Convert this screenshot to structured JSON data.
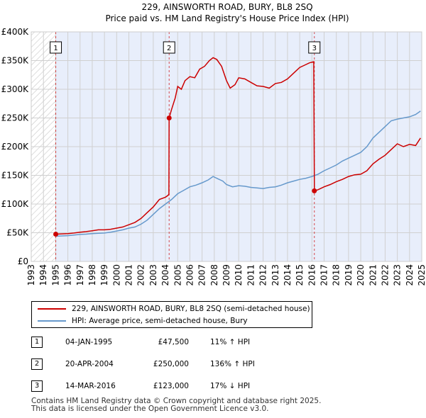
{
  "title": "229, AINSWORTH ROAD, BURY, BL8 2SQ",
  "subtitle": "Price paid vs. HM Land Registry's House Price Index (HPI)",
  "chart_data": {
    "type": "line",
    "title": "229, AINSWORTH ROAD, BURY, BL8 2SQ",
    "subtitle": "Price paid vs. HM Land Registry's House Price Index (HPI)",
    "xlabel": "",
    "ylabel": "",
    "xlim": [
      1993,
      2025
    ],
    "ylim": [
      0,
      400000
    ],
    "y_ticks": [
      0,
      50000,
      100000,
      150000,
      200000,
      250000,
      300000,
      350000,
      400000
    ],
    "y_tick_labels": [
      "£0",
      "£50K",
      "£100K",
      "£150K",
      "£200K",
      "£250K",
      "£300K",
      "£350K",
      "£400K"
    ],
    "x_tick_labels": [
      "1993",
      "1994",
      "1995",
      "1996",
      "1997",
      "1998",
      "1999",
      "2000",
      "2001",
      "2002",
      "2003",
      "2004",
      "2005",
      "2006",
      "2007",
      "2008",
      "2009",
      "2010",
      "2011",
      "2012",
      "2013",
      "2014",
      "2015",
      "2016",
      "2017",
      "2018",
      "2019",
      "2020",
      "2021",
      "2022",
      "2023",
      "2024",
      "2025"
    ],
    "grid": true,
    "series": [
      {
        "name": "229, AINSWORTH ROAD, BURY, BL8 2SQ (semi-detached house)",
        "color": "#cc0000",
        "points": [
          [
            1995.01,
            47500
          ],
          [
            1995.5,
            48000
          ],
          [
            1996,
            48500
          ],
          [
            1996.5,
            49500
          ],
          [
            1997,
            51000
          ],
          [
            1997.5,
            52000
          ],
          [
            1998,
            53500
          ],
          [
            1998.5,
            55000
          ],
          [
            1999,
            55000
          ],
          [
            1999.5,
            56000
          ],
          [
            2000,
            58000
          ],
          [
            2000.5,
            60000
          ],
          [
            2001,
            64000
          ],
          [
            2001.5,
            68000
          ],
          [
            2002,
            75000
          ],
          [
            2002.5,
            85000
          ],
          [
            2003,
            95000
          ],
          [
            2003.5,
            108000
          ],
          [
            2004,
            112000
          ],
          [
            2004.2,
            115000
          ],
          [
            2004.28,
            117000
          ],
          [
            2004.3,
            250000
          ],
          [
            2004.5,
            265000
          ],
          [
            2004.8,
            285000
          ],
          [
            2005,
            305000
          ],
          [
            2005.3,
            300000
          ],
          [
            2005.6,
            315000
          ],
          [
            2006,
            322000
          ],
          [
            2006.4,
            320000
          ],
          [
            2006.8,
            335000
          ],
          [
            2007.2,
            340000
          ],
          [
            2007.6,
            350000
          ],
          [
            2007.9,
            355000
          ],
          [
            2008.2,
            352000
          ],
          [
            2008.6,
            340000
          ],
          [
            2009,
            315000
          ],
          [
            2009.3,
            302000
          ],
          [
            2009.7,
            308000
          ],
          [
            2010,
            320000
          ],
          [
            2010.5,
            318000
          ],
          [
            2011,
            312000
          ],
          [
            2011.5,
            306000
          ],
          [
            2012,
            305000
          ],
          [
            2012.5,
            302000
          ],
          [
            2013,
            310000
          ],
          [
            2013.5,
            312000
          ],
          [
            2014,
            318000
          ],
          [
            2014.5,
            328000
          ],
          [
            2015,
            338000
          ],
          [
            2015.4,
            342000
          ],
          [
            2015.8,
            346000
          ],
          [
            2016.15,
            348000
          ],
          [
            2016.2,
            123000
          ],
          [
            2016.5,
            125000
          ],
          [
            2017,
            130000
          ],
          [
            2017.5,
            134000
          ],
          [
            2018,
            139000
          ],
          [
            2018.5,
            143000
          ],
          [
            2019,
            148000
          ],
          [
            2019.5,
            151000
          ],
          [
            2020,
            152000
          ],
          [
            2020.5,
            158000
          ],
          [
            2021,
            170000
          ],
          [
            2021.5,
            178000
          ],
          [
            2022,
            185000
          ],
          [
            2022.5,
            195000
          ],
          [
            2023,
            205000
          ],
          [
            2023.5,
            200000
          ],
          [
            2024,
            204000
          ],
          [
            2024.5,
            202000
          ],
          [
            2024.9,
            215000
          ]
        ]
      },
      {
        "name": "HPI: Average price, semi-detached house, Bury",
        "color": "#6699cc",
        "points": [
          [
            1995,
            44000
          ],
          [
            1995.5,
            44500
          ],
          [
            1996,
            45000
          ],
          [
            1996.5,
            46000
          ],
          [
            1997,
            47000
          ],
          [
            1997.5,
            47500
          ],
          [
            1998,
            48500
          ],
          [
            1998.5,
            49000
          ],
          [
            1999,
            49500
          ],
          [
            1999.5,
            51000
          ],
          [
            2000,
            53000
          ],
          [
            2000.5,
            55000
          ],
          [
            2001,
            58000
          ],
          [
            2001.5,
            60000
          ],
          [
            2002,
            65000
          ],
          [
            2002.5,
            72000
          ],
          [
            2003,
            82000
          ],
          [
            2003.5,
            92000
          ],
          [
            2004,
            100000
          ],
          [
            2004.5,
            108000
          ],
          [
            2005,
            118000
          ],
          [
            2005.5,
            124000
          ],
          [
            2006,
            130000
          ],
          [
            2006.5,
            133000
          ],
          [
            2007,
            137000
          ],
          [
            2007.5,
            142000
          ],
          [
            2007.9,
            148000
          ],
          [
            2008.3,
            144000
          ],
          [
            2008.7,
            140000
          ],
          [
            2009,
            134000
          ],
          [
            2009.5,
            130000
          ],
          [
            2010,
            132000
          ],
          [
            2010.5,
            131000
          ],
          [
            2011,
            129000
          ],
          [
            2011.5,
            128000
          ],
          [
            2012,
            127000
          ],
          [
            2012.5,
            129000
          ],
          [
            2013,
            130000
          ],
          [
            2013.5,
            133000
          ],
          [
            2014,
            137000
          ],
          [
            2014.5,
            140000
          ],
          [
            2015,
            143000
          ],
          [
            2015.5,
            145000
          ],
          [
            2016,
            148000
          ],
          [
            2016.5,
            152000
          ],
          [
            2017,
            158000
          ],
          [
            2017.5,
            163000
          ],
          [
            2018,
            168000
          ],
          [
            2018.5,
            175000
          ],
          [
            2019,
            180000
          ],
          [
            2019.5,
            185000
          ],
          [
            2020,
            190000
          ],
          [
            2020.5,
            200000
          ],
          [
            2021,
            215000
          ],
          [
            2021.5,
            225000
          ],
          [
            2022,
            235000
          ],
          [
            2022.5,
            245000
          ],
          [
            2023,
            248000
          ],
          [
            2023.5,
            250000
          ],
          [
            2024,
            252000
          ],
          [
            2024.5,
            256000
          ],
          [
            2024.9,
            262000
          ]
        ]
      }
    ],
    "sales": [
      {
        "label": "1",
        "x": 1995.01,
        "price": 47500,
        "marker_y": 47500,
        "vline": true
      },
      {
        "label": "2",
        "x": 2004.3,
        "price": 250000,
        "marker_y": 250000,
        "vline": true
      },
      {
        "label": "3",
        "x": 2016.2,
        "price": 123000,
        "marker_y": 123000,
        "vline": true
      }
    ],
    "hatch_before": 1995.0,
    "shade_after_first": true
  },
  "legend": {
    "items": [
      {
        "label": "229, AINSWORTH ROAD, BURY, BL8 2SQ (semi-detached house)",
        "color": "#cc0000"
      },
      {
        "label": "HPI: Average price, semi-detached house, Bury",
        "color": "#6699cc"
      }
    ]
  },
  "sales_table": [
    {
      "num": "1",
      "date": "04-JAN-1995",
      "price": "£47,500",
      "hpi": "11% ↑ HPI"
    },
    {
      "num": "2",
      "date": "20-APR-2004",
      "price": "£250,000",
      "hpi": "136% ↑ HPI"
    },
    {
      "num": "3",
      "date": "14-MAR-2016",
      "price": "£123,000",
      "hpi": "17% ↓ HPI"
    }
  ],
  "footer": {
    "line1": "Contains HM Land Registry data © Crown copyright and database right 2025.",
    "line2": "This data is licensed under the Open Government Licence v3.0."
  }
}
